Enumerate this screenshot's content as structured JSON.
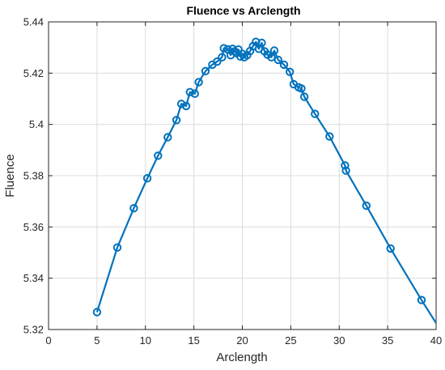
{
  "chart_data": {
    "type": "line",
    "title": "Fluence vs Arclength",
    "xlabel": "Arclength",
    "ylabel": "Fluence",
    "xlim": [
      0,
      40
    ],
    "ylim": [
      5.32,
      5.44
    ],
    "xticks": [
      0,
      5,
      10,
      15,
      20,
      25,
      30,
      35,
      40
    ],
    "yticks": [
      5.32,
      5.34,
      5.36,
      5.38,
      5.4,
      5.42,
      5.44
    ],
    "xtick_labels": [
      "0",
      "5",
      "10",
      "15",
      "20",
      "25",
      "30",
      "35",
      "40"
    ],
    "ytick_labels": [
      "5.32",
      "5.34",
      "5.36",
      "5.38",
      "5.4",
      "5.42",
      "5.44"
    ],
    "grid": true,
    "legend": "none",
    "series_color": "#0072bd",
    "marker": "circle",
    "series": [
      {
        "x": [
          5.0,
          7.1,
          8.8,
          10.2,
          11.3,
          12.3,
          13.2,
          13.7,
          14.2,
          14.6,
          15.1,
          15.5,
          16.2,
          16.9,
          17.4,
          17.9,
          18.1,
          18.5,
          18.8,
          19.0,
          19.2,
          19.4,
          19.6,
          19.8,
          20.0,
          20.2,
          20.5,
          20.8,
          21.1,
          21.4,
          21.7,
          22.0,
          22.3,
          22.6,
          23.0,
          23.3,
          23.7,
          24.3,
          24.9,
          25.3,
          25.8,
          26.1,
          26.4,
          27.5,
          29.0,
          30.6,
          30.7,
          32.8,
          35.3,
          38.5,
          40.0
        ],
        "y": [
          5.3268,
          5.352,
          5.3673,
          5.379,
          5.3878,
          5.395,
          5.4017,
          5.408,
          5.4072,
          5.4126,
          5.412,
          5.4165,
          5.4208,
          5.4233,
          5.4245,
          5.4262,
          5.4297,
          5.4293,
          5.427,
          5.4295,
          5.4285,
          5.4278,
          5.4292,
          5.4265,
          5.4275,
          5.4262,
          5.427,
          5.4286,
          5.4305,
          5.4322,
          5.4295,
          5.4318,
          5.4285,
          5.4272,
          5.4262,
          5.4288,
          5.4252,
          5.4233,
          5.4205,
          5.4157,
          5.4145,
          5.414,
          5.4108,
          5.4041,
          5.3953,
          5.384,
          5.382,
          5.3683,
          5.3516,
          5.3315,
          5.3225
        ],
        "markers_x": [
          5.0,
          7.1,
          8.8,
          10.2,
          11.3,
          12.3,
          13.2,
          13.7,
          14.2,
          14.6,
          15.1,
          15.5,
          16.2,
          16.9,
          17.4,
          17.9,
          18.1,
          18.5,
          18.8,
          19.0,
          19.2,
          19.4,
          19.6,
          19.8,
          20.0,
          20.2,
          20.5,
          20.8,
          21.1,
          21.4,
          21.7,
          22.0,
          22.3,
          22.6,
          23.0,
          23.3,
          23.7,
          24.3,
          24.9,
          25.3,
          25.8,
          26.1,
          26.4,
          27.5,
          29.0,
          30.6,
          30.7,
          32.8,
          35.3,
          38.5
        ],
        "markers_y": [
          5.3268,
          5.352,
          5.3673,
          5.379,
          5.3878,
          5.395,
          5.4017,
          5.408,
          5.4072,
          5.4126,
          5.412,
          5.4165,
          5.4208,
          5.4233,
          5.4245,
          5.4262,
          5.4297,
          5.4293,
          5.427,
          5.4295,
          5.4285,
          5.4278,
          5.4292,
          5.4265,
          5.4275,
          5.4262,
          5.427,
          5.4286,
          5.4305,
          5.4322,
          5.4295,
          5.4318,
          5.4285,
          5.4272,
          5.4262,
          5.4288,
          5.4252,
          5.4233,
          5.4205,
          5.4157,
          5.4145,
          5.414,
          5.4108,
          5.4041,
          5.3953,
          5.384,
          5.382,
          5.3683,
          5.3516,
          5.3315
        ]
      }
    ]
  }
}
